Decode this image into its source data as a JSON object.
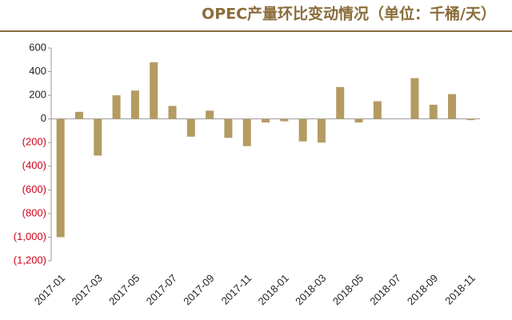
{
  "chart_data": {
    "type": "bar",
    "title": "OPEC产量环比变动情况（单位：千桶/天）",
    "categories": [
      "2017-01",
      null,
      "2017-03",
      null,
      "2017-05",
      null,
      "2017-07",
      null,
      "2017-09",
      null,
      "2017-11",
      null,
      "2018-01",
      null,
      "2018-03",
      null,
      "2018-05",
      null,
      "2018-07",
      null,
      "2018-09",
      null,
      "2018-11"
    ],
    "values": [
      -1000,
      60,
      -310,
      200,
      240,
      480,
      110,
      -150,
      70,
      -160,
      -230,
      -30,
      -20,
      -190,
      -200,
      270,
      -30,
      150,
      0,
      345,
      120,
      210,
      -10
    ],
    "color": "#b39b62",
    "ylim": [
      -1200,
      600
    ],
    "yticks": [
      600,
      400,
      200,
      0,
      {
        "value": -200,
        "label": "(200)"
      },
      {
        "value": -400,
        "label": "(400)"
      },
      {
        "value": -600,
        "label": "(600)"
      },
      {
        "value": -800,
        "label": "(800)"
      },
      {
        "value": -1000,
        "label": "(1,000)"
      },
      {
        "value": -1200,
        "label": "(1,200)"
      }
    ],
    "negative_tick_color": "#d0021b",
    "grid": false
  }
}
